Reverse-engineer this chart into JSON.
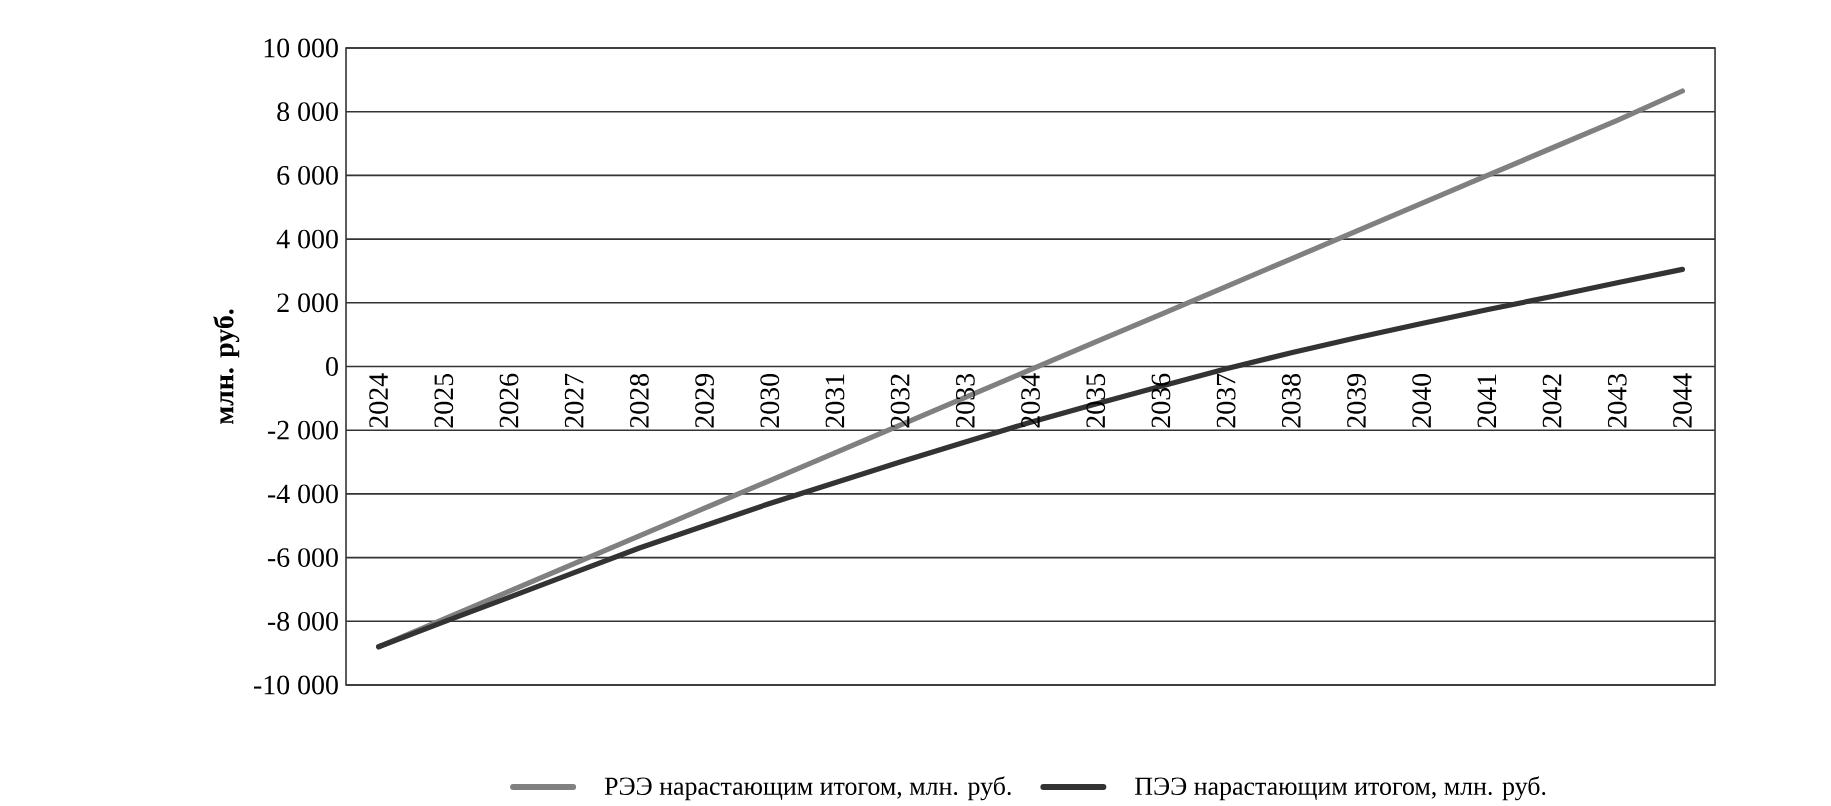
{
  "chart_data": {
    "type": "line",
    "ylabel": "млн. руб.",
    "categories": [
      "2024",
      "2025",
      "2026",
      "2027",
      "2028",
      "2029",
      "2030",
      "2031",
      "2032",
      "2033",
      "2034",
      "2035",
      "2036",
      "2037",
      "2038",
      "2039",
      "2040",
      "2041",
      "2042",
      "2043",
      "2044"
    ],
    "series": [
      {
        "name": "РЭЭ нарастающим итогом, млн. руб.",
        "color": "#808080",
        "values": [
          -8800,
          -7930,
          -7060,
          -6190,
          -5320,
          -4450,
          -3580,
          -2710,
          -1840,
          -970,
          -100,
          770,
          1640,
          2510,
          3380,
          4250,
          5120,
          5990,
          6860,
          7730,
          8650
        ]
      },
      {
        "name": "ПЭЭ нарастающим итогом, млн. руб.",
        "color": "#333333",
        "values": [
          -8800,
          -8020,
          -7250,
          -6470,
          -5700,
          -5000,
          -4300,
          -3650,
          -3000,
          -2370,
          -1750,
          -1180,
          -620,
          -70,
          430,
          900,
          1350,
          1780,
          2200,
          2630,
          3050
        ]
      }
    ],
    "ylim": [
      -10000,
      10000
    ],
    "yticks": [
      {
        "value": -10000,
        "label": "-10 000"
      },
      {
        "value": -8000,
        "label": "-8 000"
      },
      {
        "value": -6000,
        "label": "-6 000"
      },
      {
        "value": -4000,
        "label": "-4 000"
      },
      {
        "value": -2000,
        "label": "-2 000"
      },
      0,
      {
        "value": 2000,
        "label": "2 000"
      },
      {
        "value": 4000,
        "label": "4 000"
      },
      {
        "value": 6000,
        "label": "6 000"
      },
      {
        "value": 8000,
        "label": "8 000"
      },
      {
        "value": 10000,
        "label": "10 000"
      }
    ],
    "grid": true,
    "legend": "bottom"
  }
}
